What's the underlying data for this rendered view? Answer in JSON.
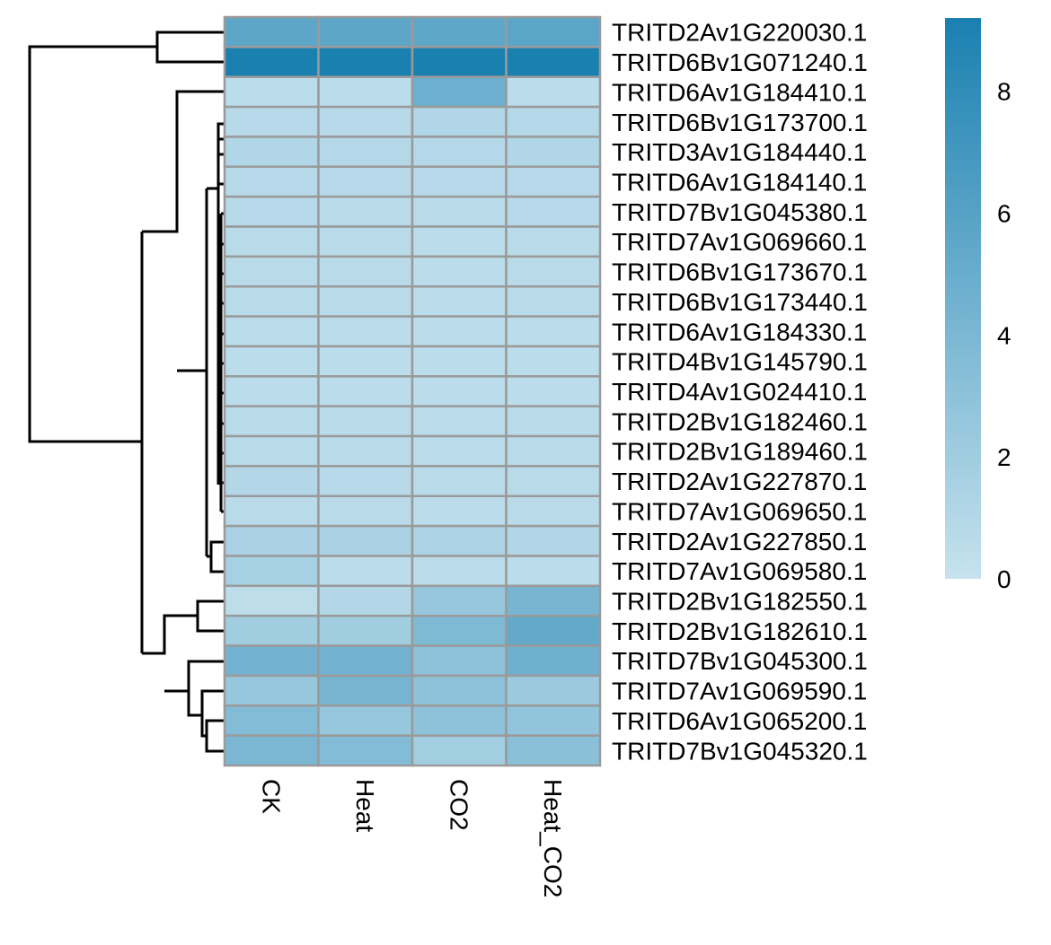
{
  "chart_data": {
    "type": "heatmap",
    "title": "",
    "columns": [
      "CK",
      "Heat",
      "CO2",
      "Heat_CO2"
    ],
    "rows": [
      "TRITD2Av1G220030.1",
      "TRITD6Bv1G071240.1",
      "TRITD6Av1G184410.1",
      "TRITD6Bv1G173700.1",
      "TRITD3Av1G184440.1",
      "TRITD6Av1G184140.1",
      "TRITD7Bv1G045380.1",
      "TRITD7Av1G069660.1",
      "TRITD6Bv1G173670.1",
      "TRITD6Bv1G173440.1",
      "TRITD6Av1G184330.1",
      "TRITD4Bv1G145790.1",
      "TRITD4Av1G024410.1",
      "TRITD2Bv1G182460.1",
      "TRITD2Bv1G189460.1",
      "TRITD2Av1G227870.1",
      "TRITD7Av1G069650.1",
      "TRITD2Av1G227850.1",
      "TRITD7Av1G069580.1",
      "TRITD2Bv1G182550.1",
      "TRITD2Bv1G182610.1",
      "TRITD7Bv1G045300.1",
      "TRITD7Av1G069590.1",
      "TRITD6Av1G065200.1",
      "TRITD7Bv1G045320.1"
    ],
    "values": [
      [
        5.6,
        5.6,
        5.5,
        5.7
      ],
      [
        9.2,
        9.2,
        9.2,
        9.2
      ],
      [
        0.6,
        0.6,
        4.8,
        0.6
      ],
      [
        0.8,
        0.8,
        1.1,
        0.9
      ],
      [
        1.1,
        0.9,
        0.9,
        1.1
      ],
      [
        0.8,
        0.8,
        0.8,
        0.8
      ],
      [
        0.8,
        0.7,
        0.7,
        0.8
      ],
      [
        0.7,
        0.7,
        0.6,
        0.7
      ],
      [
        0.7,
        0.7,
        0.6,
        0.7
      ],
      [
        0.7,
        0.7,
        0.6,
        0.7
      ],
      [
        0.6,
        0.6,
        0.6,
        0.6
      ],
      [
        0.6,
        0.6,
        0.6,
        0.6
      ],
      [
        0.6,
        0.6,
        0.6,
        0.6
      ],
      [
        0.7,
        0.7,
        0.6,
        0.7
      ],
      [
        0.7,
        0.7,
        0.6,
        0.7
      ],
      [
        1.0,
        0.8,
        0.7,
        0.7
      ],
      [
        0.7,
        0.7,
        0.6,
        0.7
      ],
      [
        1.5,
        1.5,
        1.4,
        1.1
      ],
      [
        1.7,
        0.6,
        0.6,
        0.6
      ],
      [
        0.5,
        1.0,
        2.5,
        4.2
      ],
      [
        2.0,
        2.0,
        3.8,
        5.3
      ],
      [
        4.5,
        4.5,
        3.0,
        4.7
      ],
      [
        2.5,
        4.3,
        3.0,
        2.3
      ],
      [
        3.6,
        2.5,
        3.0,
        2.8
      ],
      [
        4.0,
        3.6,
        1.9,
        3.2
      ]
    ],
    "color_scale": {
      "min": 0,
      "max": 9.2,
      "low_color": "#c6e2ee",
      "high_color": "#1a80b0",
      "ticks": [
        0,
        2,
        4,
        6,
        8
      ]
    },
    "legend_placement": "right",
    "cell_border_color": "#9a9a9a",
    "row_dendrogram": true
  }
}
